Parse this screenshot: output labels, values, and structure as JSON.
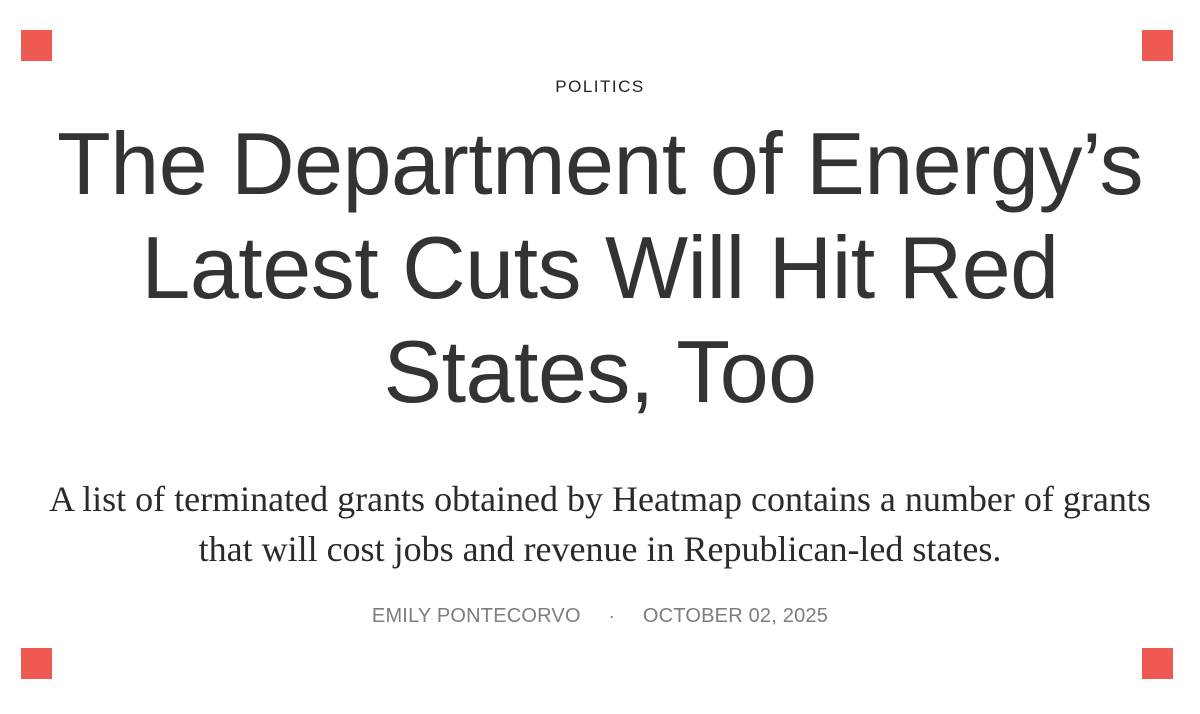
{
  "article": {
    "category": "POLITICS",
    "headline": "The Department of Energy’s Latest Cuts Will Hit Red States, Too",
    "dek": "A list of terminated grants obtained by Heatmap contains a number of grants that will cost jobs and revenue in Republican-led states.",
    "author": "EMILY PONTECORVO",
    "separator": "·",
    "date": "OCTOBER 02, 2025"
  },
  "colors": {
    "accent": "#ee5a52",
    "headline": "#333333",
    "byline": "#7d7d7d"
  }
}
